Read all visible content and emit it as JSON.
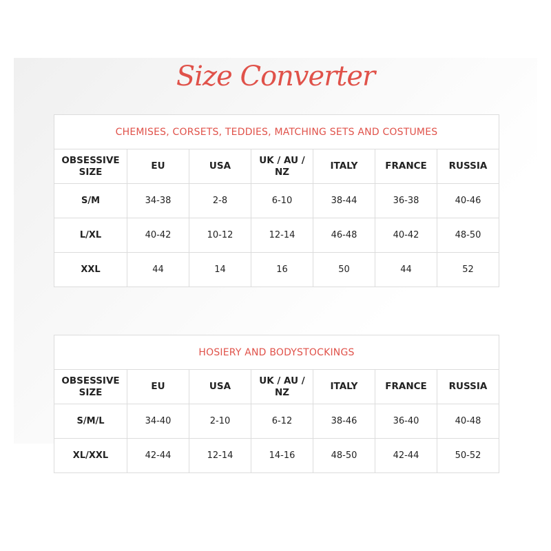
{
  "title": "Size Converter",
  "accent_color": "#e0524a",
  "tables": [
    {
      "caption": "CHEMISES, CORSETS, TEDDIES, MATCHING SETS AND COSTUMES",
      "headers": [
        "OBSESSIVE SIZE",
        "EU",
        "USA",
        "UK / AU / NZ",
        "ITALY",
        "FRANCE",
        "RUSSIA"
      ],
      "rows": [
        [
          "S/M",
          "34-38",
          "2-8",
          "6-10",
          "38-44",
          "36-38",
          "40-46"
        ],
        [
          "L/XL",
          "40-42",
          "10-12",
          "12-14",
          "46-48",
          "40-42",
          "48-50"
        ],
        [
          "XXL",
          "44",
          "14",
          "16",
          "50",
          "44",
          "52"
        ]
      ]
    },
    {
      "caption": "HOSIERY AND BODYSTOCKINGS",
      "headers": [
        "OBSESSIVE SIZE",
        "EU",
        "USA",
        "UK / AU / NZ",
        "ITALY",
        "FRANCE",
        "RUSSIA"
      ],
      "rows": [
        [
          "S/M/L",
          "34-40",
          "2-10",
          "6-12",
          "38-46",
          "36-40",
          "40-48"
        ],
        [
          "XL/XXL",
          "42-44",
          "12-14",
          "14-16",
          "48-50",
          "42-44",
          "50-52"
        ]
      ]
    }
  ]
}
